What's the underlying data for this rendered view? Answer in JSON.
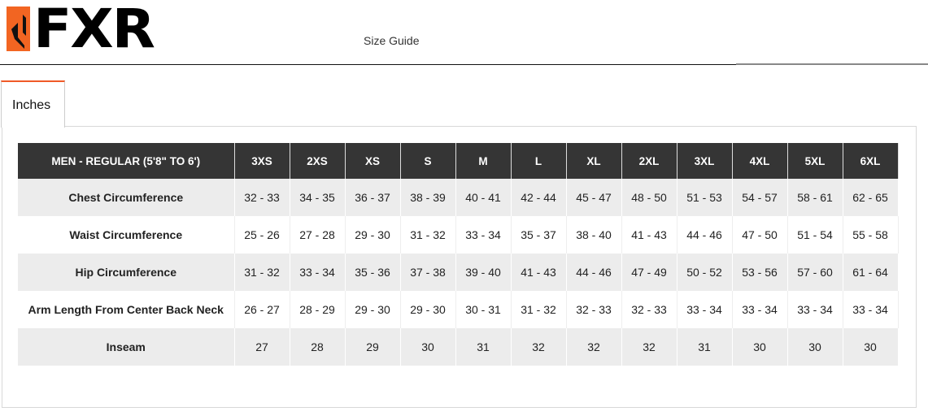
{
  "brand": {
    "logo_text": "FXR",
    "accent": "#f26522"
  },
  "header": {
    "title": "Size Guide"
  },
  "tabs": [
    {
      "label": "Inches",
      "active": true
    }
  ],
  "table": {
    "header": [
      "MEN - REGULAR (5'8\" TO 6')",
      "3XS",
      "2XS",
      "XS",
      "S",
      "M",
      "L",
      "XL",
      "2XL",
      "3XL",
      "4XL",
      "5XL",
      "6XL"
    ],
    "rows": [
      [
        "Chest Circumference",
        "32 - 33",
        "34 - 35",
        "36 - 37",
        "38 - 39",
        "40 - 41",
        "42 - 44",
        "45 - 47",
        "48 - 50",
        "51 - 53",
        "54 - 57",
        "58 - 61",
        "62 - 65"
      ],
      [
        "Waist Circumference",
        "25 - 26",
        "27 - 28",
        "29 - 30",
        "31 - 32",
        "33 - 34",
        "35 - 37",
        "38 - 40",
        "41 - 43",
        "44 - 46",
        "47 - 50",
        "51 - 54",
        "55 - 58"
      ],
      [
        "Hip Circumference",
        "31 - 32",
        "33 - 34",
        "35 - 36",
        "37 - 38",
        "39 - 40",
        "41 - 43",
        "44 - 46",
        "47 - 49",
        "50 - 52",
        "53 - 56",
        "57 - 60",
        "61 - 64"
      ],
      [
        "Arm Length From Center Back Neck",
        "26 - 27",
        "28 - 29",
        "29 - 30",
        "29 - 30",
        "30 - 31",
        "31 - 32",
        "32 - 33",
        "32 - 33",
        "33 - 34",
        "33 - 34",
        "33 - 34",
        "33 - 34"
      ],
      [
        "Inseam",
        "27",
        "28",
        "29",
        "30",
        "31",
        "32",
        "32",
        "32",
        "31",
        "30",
        "30",
        "30"
      ]
    ]
  }
}
